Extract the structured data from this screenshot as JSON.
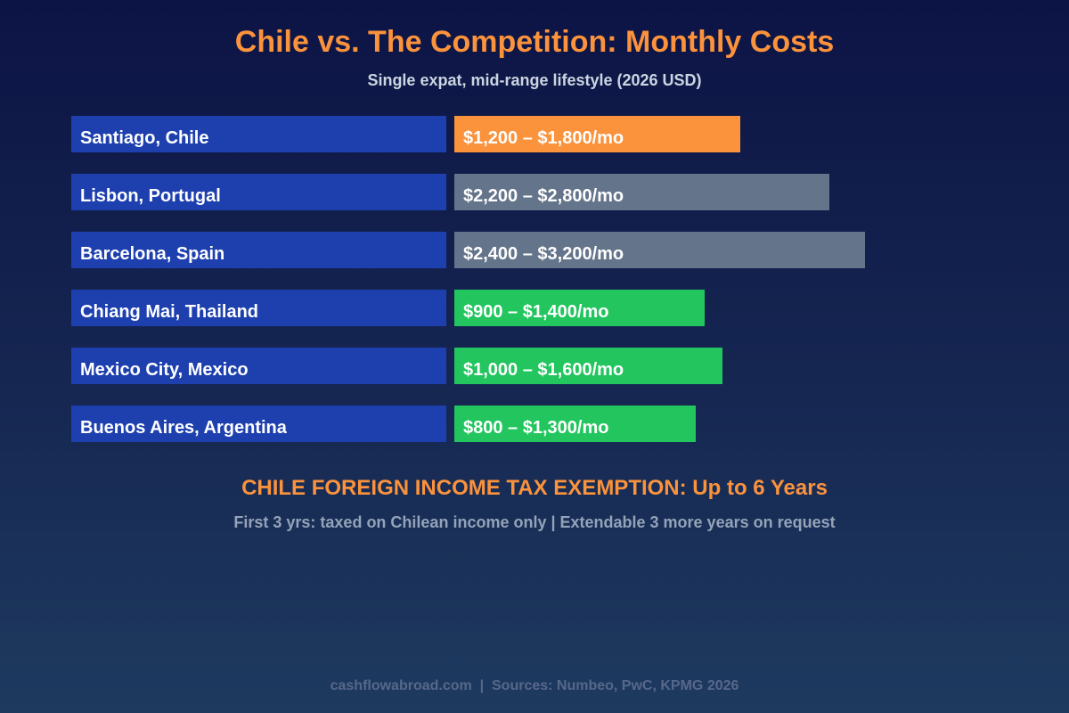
{
  "chart_data": {
    "type": "bar",
    "orientation": "horizontal",
    "title": "Chile vs. The Competition: Monthly Costs",
    "subtitle": "Single expat, mid-range lifestyle (2026 USD)",
    "categories": [
      "Santiago, Chile",
      "Lisbon, Portugal",
      "Barcelona, Spain",
      "Chiang Mai, Thailand",
      "Mexico City, Mexico",
      "Buenos Aires, Argentina"
    ],
    "ranges": [
      [
        1200,
        1800
      ],
      [
        2200,
        2800
      ],
      [
        2400,
        3200
      ],
      [
        900,
        1400
      ],
      [
        1000,
        1600
      ],
      [
        800,
        1300
      ]
    ],
    "data_labels": [
      "$1,200 – $1,800/mo",
      "$2,200 – $2,800/mo",
      "$2,400 – $3,200/mo",
      "$900 – $1,400/mo",
      "$1,000 – $1,600/mo",
      "$800 – $1,300/mo"
    ],
    "bar_colors": [
      "#fb923c",
      "#64748b",
      "#64748b",
      "#22c55e",
      "#22c55e",
      "#22c55e"
    ],
    "label_bar_color": "#1e40af",
    "grid": false,
    "legend": "none"
  },
  "tax": {
    "headline": "CHILE FOREIGN INCOME TAX EXEMPTION: Up to 6 Years",
    "detail": "First 3 yrs: taxed on Chilean income only | Extendable 3 more years on request"
  },
  "footer": "cashflowabroad.com  |  Sources: Numbeo, PwC, KPMG 2026"
}
